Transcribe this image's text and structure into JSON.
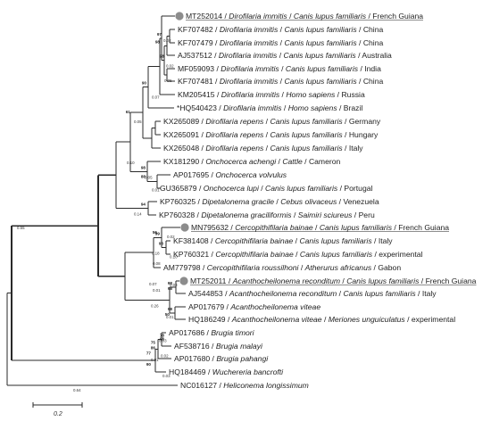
{
  "tree": {
    "leaves": [
      {
        "acc": "MT252014",
        "sp": "Dirofilaria immitis",
        "host": "Canis lupus familiaris",
        "place": "French Guiana",
        "highlight": true
      },
      {
        "acc": "KF707482",
        "sp": "Dirofilaria immitis",
        "host": "Canis lupus familiaris",
        "place": "China"
      },
      {
        "acc": "KF707479",
        "sp": "Dirofilaria immitis",
        "host": "Canis lupus familiaris",
        "place": "China"
      },
      {
        "acc": "AJ537512",
        "sp": "Dirofilaria immitis",
        "host": "Canis lupus familiaris",
        "place": "Australia"
      },
      {
        "acc": "MF059093",
        "sp": "Dirofilaria immitis",
        "host": "Canis lupus familiaris",
        "place": "India"
      },
      {
        "acc": "KF707481",
        "sp": "Dirofilaria immitis",
        "host": "Canis lupus familiaris",
        "place": "China"
      },
      {
        "acc": "KM205415",
        "sp": "Dirofilaria immitis",
        "host": "Homo sapiens",
        "place": "Russia"
      },
      {
        "acc": "*HQ540423",
        "sp": "Dirofilaria immitis",
        "host": "Homo sapiens",
        "place": "Brazil"
      },
      {
        "acc": "KX265089",
        "sp": "Dirofilaria repens",
        "host": "Canis lupus familiaris",
        "place": "Germany"
      },
      {
        "acc": "KX265091",
        "sp": "Dirofilaria repens",
        "host": "Canis lupus familiaris",
        "place": "Hungary"
      },
      {
        "acc": "KX265048",
        "sp": "Dirofilaria repens",
        "host": "Canis lupus familiaris",
        "place": "Italy"
      },
      {
        "acc": "KX181290",
        "sp": "Onchocerca achengi",
        "host": "Cattle",
        "place": "Cameron"
      },
      {
        "acc": "AP017695",
        "sp": "Onchocerca volvulus",
        "host": "",
        "place": ""
      },
      {
        "acc": "GU365879",
        "sp": "Onchocerca lupi",
        "host": "Canis lupus familiaris",
        "place": "Portugal"
      },
      {
        "acc": "KP760325",
        "sp": "Dipetalonema gracile",
        "host": "Cebus olivaceus",
        "place": "Venezuela"
      },
      {
        "acc": "KP760328",
        "sp": "Dipetalonema graciliformis",
        "host": "Saimiri sciureus",
        "place": "Peru"
      },
      {
        "acc": "MN795632",
        "sp": "Cercopithifilaria bainae",
        "host": "Canis lupus familiaris",
        "place": "French Guiana",
        "highlight": true
      },
      {
        "acc": "KF381408",
        "sp": "Cercopithifilaria bainae",
        "host": "Canis lupus familiaris",
        "place": "Italy"
      },
      {
        "acc": "KP760321",
        "sp": "Cercopithifilaria bainae",
        "host": "Canis lupus familiaris",
        "place": "experimental"
      },
      {
        "acc": "AM779798",
        "sp": "Cercopithifilaria roussilhoni",
        "host": "Atherurus africanus",
        "place": "Gabon"
      },
      {
        "acc": "MT252011",
        "sp": "Acanthocheilonema reconditum",
        "host": "Canis lupus familiaris",
        "place": "French Guiana",
        "highlight": true
      },
      {
        "acc": "AJ544853",
        "sp": "Acanthocheilonema reconditum",
        "host": "Canis lupus familiaris",
        "place": "Italy"
      },
      {
        "acc": "AP017679",
        "sp": "Acanthocheilonema viteae",
        "host": "",
        "place": ""
      },
      {
        "acc": "HQ186249",
        "sp": "Acanthocheilonema viteae",
        "host": "Meriones unguiculatus",
        "place": "experimental"
      },
      {
        "acc": "AP017686",
        "sp": "Brugia timori",
        "host": "",
        "place": ""
      },
      {
        "acc": "AF538716",
        "sp": "Brugia malayi",
        "host": "",
        "place": ""
      },
      {
        "acc": "AP017680",
        "sp": "Brugia pahangi",
        "host": "",
        "place": ""
      },
      {
        "acc": "HQ184469",
        "sp": "Wuchereria bancrofti",
        "host": "",
        "place": ""
      },
      {
        "acc": "NC016127",
        "sp": "Heliconema",
        "host": "",
        "place": "longissimum"
      }
    ],
    "bootstrap": [
      "98",
      "97",
      "90",
      "98",
      "61",
      "98",
      "94",
      "88",
      "98",
      "56",
      "99",
      "98",
      "98",
      "86",
      "75",
      "77",
      "98",
      "50",
      "78",
      "98",
      "90"
    ],
    "branch_lengths": [
      "0.05",
      "0.02",
      "0.02",
      "0.07",
      "0.05",
      "0.05",
      "0.01",
      "0.14",
      "0.10",
      "0.10",
      "0.02",
      "0.18",
      "0.03",
      "0.08",
      "0.01",
      "0.07",
      "0.26",
      "0.01",
      "0.55",
      "0.03",
      "0.02",
      "0.01",
      "0.03",
      "0.64"
    ],
    "scale_label": "0.2",
    "marker_color": "#8c8c8c"
  }
}
